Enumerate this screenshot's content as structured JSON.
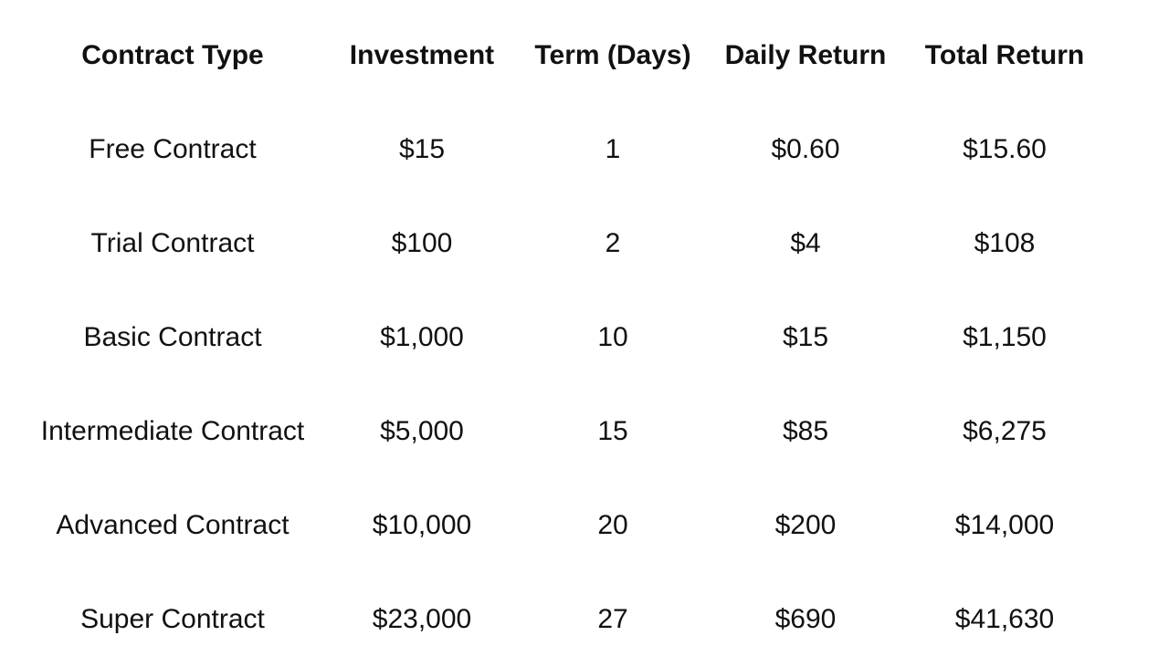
{
  "page": {
    "background_color": "#ffffff",
    "text_color": "#111111"
  },
  "table": {
    "headers": [
      "Contract Type",
      "Investment",
      "Term (Days)",
      "Daily Return",
      "Total Return"
    ],
    "rows": [
      {
        "contract_type": "Free Contract",
        "investment": "$15",
        "term_days": "1",
        "daily_return": "$0.60",
        "total_return": "$15.60"
      },
      {
        "contract_type": "Trial Contract",
        "investment": "$100",
        "term_days": "2",
        "daily_return": "$4",
        "total_return": "$108"
      },
      {
        "contract_type": "Basic Contract",
        "investment": "$1,000",
        "term_days": "10",
        "daily_return": "$15",
        "total_return": "$1,150"
      },
      {
        "contract_type": "Intermediate Contract",
        "investment": "$5,000",
        "term_days": "15",
        "daily_return": "$85",
        "total_return": "$6,275"
      },
      {
        "contract_type": "Advanced Contract",
        "investment": "$10,000",
        "term_days": "20",
        "daily_return": "$200",
        "total_return": "$14,000"
      },
      {
        "contract_type": "Super Contract",
        "investment": "$23,000",
        "term_days": "27",
        "daily_return": "$690",
        "total_return": "$41,630"
      }
    ]
  }
}
